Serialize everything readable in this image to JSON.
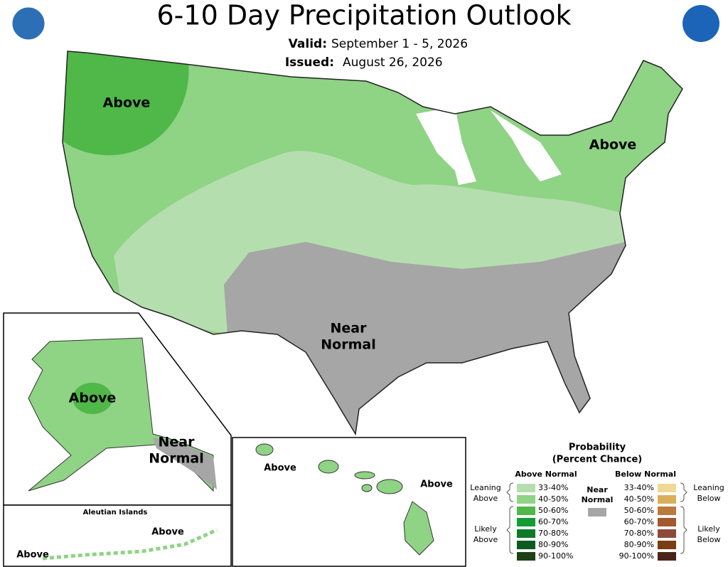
{
  "header": {
    "title": "6-10 Day Precipitation Outlook",
    "valid_label": "Valid:",
    "valid_date": "September 1 - 5, 2026",
    "issued_label": "Issued:",
    "issued_date": "August 26, 2026"
  },
  "map": {
    "conus_labels": [
      "Above",
      "Above",
      "Near",
      "Normal"
    ],
    "alaska_labels": [
      "Above",
      "Near",
      "Normal"
    ],
    "aleutian": {
      "title": "Aleutian Islands",
      "labels": [
        "Above",
        "Above"
      ]
    },
    "hawaii_labels": [
      "Above",
      "Above"
    ]
  },
  "legend": {
    "title": "Probability",
    "subtitle": "(Percent Chance)",
    "above_normal": {
      "title": "Above Normal",
      "items": [
        {
          "label": "33-40%",
          "color": "#b5deaf"
        },
        {
          "label": "40-50%",
          "color": "#8fd385"
        },
        {
          "label": "50-60%",
          "color": "#4fb848"
        },
        {
          "label": "60-70%",
          "color": "#149b36"
        },
        {
          "label": "70-80%",
          "color": "#0d7a2b"
        },
        {
          "label": "80-90%",
          "color": "#0b5c1f"
        },
        {
          "label": "90-100%",
          "color": "#1f4015"
        }
      ],
      "leaning": [
        "Leaning",
        "Above"
      ],
      "likely": [
        "Likely",
        "Above"
      ]
    },
    "near_normal": {
      "label": [
        "Near",
        "Normal"
      ],
      "color": "#a6a6a6"
    },
    "below_normal": {
      "title": "Below Normal",
      "items": [
        {
          "label": "33-40%",
          "color": "#f0d896"
        },
        {
          "label": "40-50%",
          "color": "#d8b05a"
        },
        {
          "label": "50-60%",
          "color": "#bc7a3a"
        },
        {
          "label": "60-70%",
          "color": "#a3582f"
        },
        {
          "label": "70-80%",
          "color": "#8d4a3b"
        },
        {
          "label": "80-90%",
          "color": "#7a3e12"
        },
        {
          "label": "90-100%",
          "color": "#4a2418"
        }
      ],
      "leaning": [
        "Leaning",
        "Below"
      ],
      "likely": [
        "Likely",
        "Below"
      ]
    }
  }
}
